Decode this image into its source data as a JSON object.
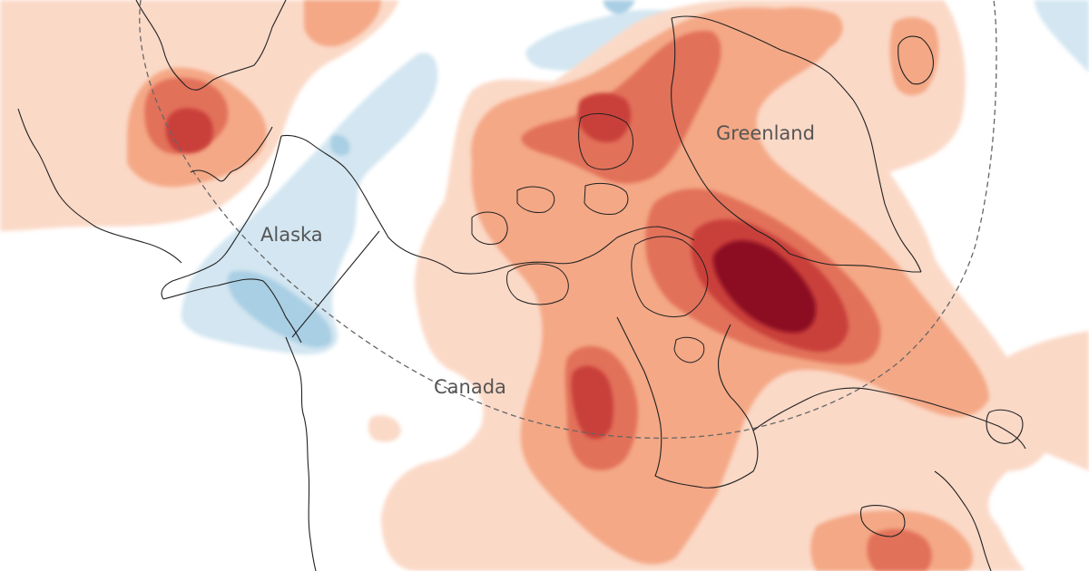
{
  "map": {
    "labels": {
      "alaska": "Alaska",
      "greenland": "Greenland",
      "canada": "Canada"
    },
    "palette": {
      "cool_1": "#d3e6f1",
      "cool_2": "#a9cfe4",
      "warm_1": "#fbd9c7",
      "warm_2": "#f4a886",
      "warm_3": "#e2715a",
      "warm_4": "#c9413a",
      "warm_5": "#8c0f24",
      "coastline": "#222222",
      "circle_line": "#666666"
    }
  }
}
